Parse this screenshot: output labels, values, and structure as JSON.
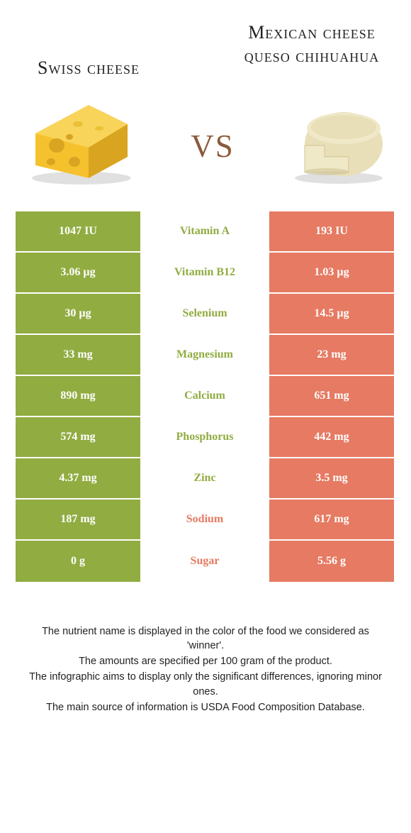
{
  "colors": {
    "food_a": "#91ac41",
    "food_b": "#e67a62",
    "cheese_yellow": "#f5c22e",
    "cheese_dark": "#d9a420",
    "queso_body": "#e8dfb8",
    "queso_shadow": "#cfc496"
  },
  "header": {
    "food_a_title": "Swiss cheese",
    "food_b_title": "Mexican cheese queso chihuahua",
    "vs_label": "vs"
  },
  "table": {
    "rows": [
      {
        "nutrient": "Vitamin A",
        "a": "1047 IU",
        "b": "193 IU",
        "winner": "a"
      },
      {
        "nutrient": "Vitamin B12",
        "a": "3.06 µg",
        "b": "1.03 µg",
        "winner": "a"
      },
      {
        "nutrient": "Selenium",
        "a": "30 µg",
        "b": "14.5 µg",
        "winner": "a"
      },
      {
        "nutrient": "Magnesium",
        "a": "33 mg",
        "b": "23 mg",
        "winner": "a"
      },
      {
        "nutrient": "Calcium",
        "a": "890 mg",
        "b": "651 mg",
        "winner": "a"
      },
      {
        "nutrient": "Phosphorus",
        "a": "574 mg",
        "b": "442 mg",
        "winner": "a"
      },
      {
        "nutrient": "Zinc",
        "a": "4.37 mg",
        "b": "3.5 mg",
        "winner": "a"
      },
      {
        "nutrient": "Sodium",
        "a": "187 mg",
        "b": "617 mg",
        "winner": "b"
      },
      {
        "nutrient": "Sugar",
        "a": "0 g",
        "b": "5.56 g",
        "winner": "b"
      }
    ]
  },
  "footer": {
    "line1": "The nutrient name is displayed in the color of the food we considered as 'winner'.",
    "line2": "The amounts are specified per 100 gram of the product.",
    "line3": "The infographic aims to display only the significant differences, ignoring minor ones.",
    "line4": "The main source of information is USDA Food Composition Database."
  }
}
